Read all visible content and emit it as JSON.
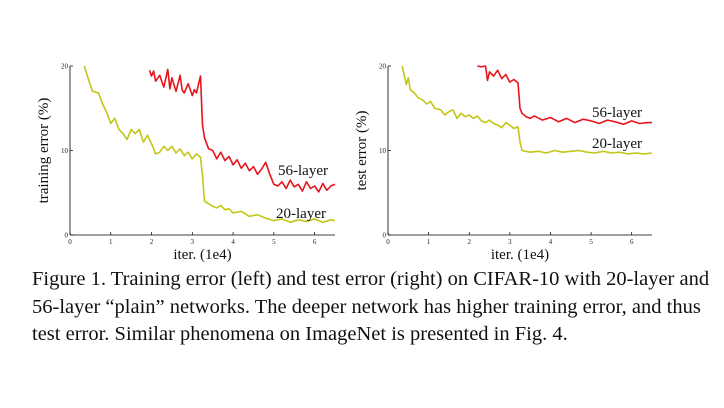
{
  "chart_data": [
    {
      "type": "line",
      "xlabel": "iter. (1e4)",
      "ylabel": "training error (%)",
      "xlim": [
        0,
        6.5
      ],
      "ylim": [
        0,
        20
      ],
      "xticks": [
        "0",
        "1",
        "2",
        "3",
        "4",
        "5",
        "6"
      ],
      "yticks": [
        "0",
        "10",
        "20"
      ],
      "series": [
        {
          "name": "56-layer",
          "color": "#e8141c",
          "x": [
            1.95,
            2.0,
            2.05,
            2.1,
            2.2,
            2.3,
            2.4,
            2.45,
            2.5,
            2.6,
            2.7,
            2.75,
            2.8,
            2.9,
            3.0,
            3.05,
            3.1,
            3.2,
            3.25,
            3.3,
            3.4,
            3.5,
            3.6,
            3.7,
            3.8,
            3.9,
            4.0,
            4.1,
            4.2,
            4.3,
            4.4,
            4.5,
            4.6,
            4.7,
            4.8,
            4.9,
            5.0,
            5.1,
            5.2,
            5.3,
            5.4,
            5.5,
            5.6,
            5.7,
            5.8,
            5.9,
            6.0,
            6.1,
            6.2,
            6.3,
            6.4,
            6.5
          ],
          "y": [
            19.5,
            18.8,
            19.4,
            18.2,
            18.9,
            17.5,
            19.6,
            17.3,
            18.6,
            17.0,
            18.9,
            17.2,
            16.8,
            17.9,
            16.5,
            17.2,
            16.8,
            18.8,
            13.0,
            11.5,
            10.2,
            10.0,
            9.0,
            9.8,
            8.8,
            9.3,
            8.3,
            8.9,
            7.9,
            8.5,
            7.6,
            8.1,
            7.2,
            7.8,
            8.6,
            7.2,
            6.0,
            5.8,
            6.3,
            5.5,
            6.5,
            5.7,
            6.0,
            5.2,
            6.3,
            5.5,
            5.8,
            5.1,
            6.1,
            5.3,
            5.8,
            6.0
          ]
        },
        {
          "name": "20-layer",
          "color": "#c3c616",
          "x": [
            0.35,
            0.45,
            0.55,
            0.7,
            0.8,
            0.9,
            1.0,
            1.1,
            1.2,
            1.3,
            1.4,
            1.5,
            1.6,
            1.7,
            1.8,
            1.9,
            2.0,
            2.1,
            2.2,
            2.3,
            2.4,
            2.5,
            2.6,
            2.7,
            2.8,
            2.9,
            3.0,
            3.1,
            3.2,
            3.25,
            3.3,
            3.4,
            3.5,
            3.6,
            3.7,
            3.8,
            3.9,
            4.0,
            4.2,
            4.4,
            4.6,
            4.8,
            5.0,
            5.2,
            5.4,
            5.6,
            5.8,
            6.0,
            6.2,
            6.4,
            6.5
          ],
          "y": [
            20.0,
            18.5,
            17.0,
            16.8,
            15.5,
            14.5,
            13.2,
            13.8,
            12.5,
            12.0,
            11.3,
            12.5,
            12.0,
            12.5,
            11.0,
            11.8,
            10.8,
            9.6,
            9.8,
            10.5,
            10.0,
            10.5,
            9.7,
            10.2,
            9.4,
            9.8,
            9.0,
            9.6,
            9.2,
            7.0,
            4.0,
            3.7,
            3.4,
            3.2,
            3.5,
            3.0,
            3.1,
            2.6,
            2.8,
            2.2,
            2.4,
            2.0,
            1.7,
            1.9,
            1.5,
            1.8,
            1.6,
            1.9,
            1.5,
            1.8,
            1.7
          ]
        }
      ]
    },
    {
      "type": "line",
      "xlabel": "iter. (1e4)",
      "ylabel": "test error (%)",
      "xlim": [
        0,
        6.5
      ],
      "ylim": [
        0,
        20
      ],
      "xticks": [
        "0",
        "1",
        "2",
        "3",
        "4",
        "5",
        "6"
      ],
      "yticks": [
        "0",
        "10",
        "20"
      ],
      "series": [
        {
          "name": "56-layer",
          "color": "#e8141c",
          "x": [
            2.2,
            2.3,
            2.4,
            2.45,
            2.5,
            2.6,
            2.7,
            2.8,
            2.9,
            3.0,
            3.1,
            3.2,
            3.25,
            3.3,
            3.4,
            3.5,
            3.6,
            3.8,
            4.0,
            4.2,
            4.4,
            4.6,
            4.8,
            5.0,
            5.2,
            5.4,
            5.6,
            5.8,
            6.0,
            6.2,
            6.4,
            6.5
          ],
          "y": [
            20.0,
            19.9,
            20.0,
            18.3,
            19.3,
            18.8,
            19.5,
            18.5,
            19.0,
            18.1,
            18.4,
            18.0,
            15.0,
            14.4,
            14.0,
            13.8,
            14.1,
            13.6,
            13.9,
            13.4,
            13.8,
            13.3,
            13.7,
            13.5,
            13.2,
            13.6,
            13.4,
            13.1,
            13.5,
            13.2,
            13.3,
            13.3
          ]
        },
        {
          "name": "20-layer",
          "color": "#c3c616",
          "x": [
            0.35,
            0.45,
            0.5,
            0.55,
            0.65,
            0.75,
            0.85,
            0.95,
            1.05,
            1.15,
            1.3,
            1.4,
            1.5,
            1.6,
            1.7,
            1.8,
            1.9,
            2.0,
            2.1,
            2.2,
            2.3,
            2.4,
            2.5,
            2.6,
            2.7,
            2.8,
            2.9,
            3.0,
            3.1,
            3.2,
            3.25,
            3.3,
            3.5,
            3.7,
            3.9,
            4.1,
            4.3,
            4.5,
            4.7,
            4.9,
            5.1,
            5.3,
            5.5,
            5.7,
            5.9,
            6.1,
            6.3,
            6.5
          ],
          "y": [
            20.0,
            17.8,
            18.6,
            17.2,
            16.8,
            16.2,
            16.0,
            15.5,
            15.8,
            15.0,
            14.8,
            14.2,
            14.6,
            14.8,
            13.8,
            14.4,
            14.0,
            14.2,
            13.8,
            14.1,
            13.5,
            13.3,
            13.6,
            13.2,
            13.0,
            12.7,
            13.3,
            13.0,
            12.6,
            12.8,
            11.0,
            10.0,
            9.8,
            9.9,
            9.7,
            10.0,
            9.8,
            9.9,
            10.0,
            9.8,
            9.7,
            9.9,
            9.7,
            9.8,
            9.6,
            9.7,
            9.6,
            9.7
          ]
        }
      ]
    }
  ],
  "caption": "Figure 1. Training error (left) and test error (right) on CIFAR-10 with 20-layer and 56-layer “plain” networks. The deeper network has higher training error, and thus test error.  Similar phenomena on ImageNet is presented in Fig. 4."
}
